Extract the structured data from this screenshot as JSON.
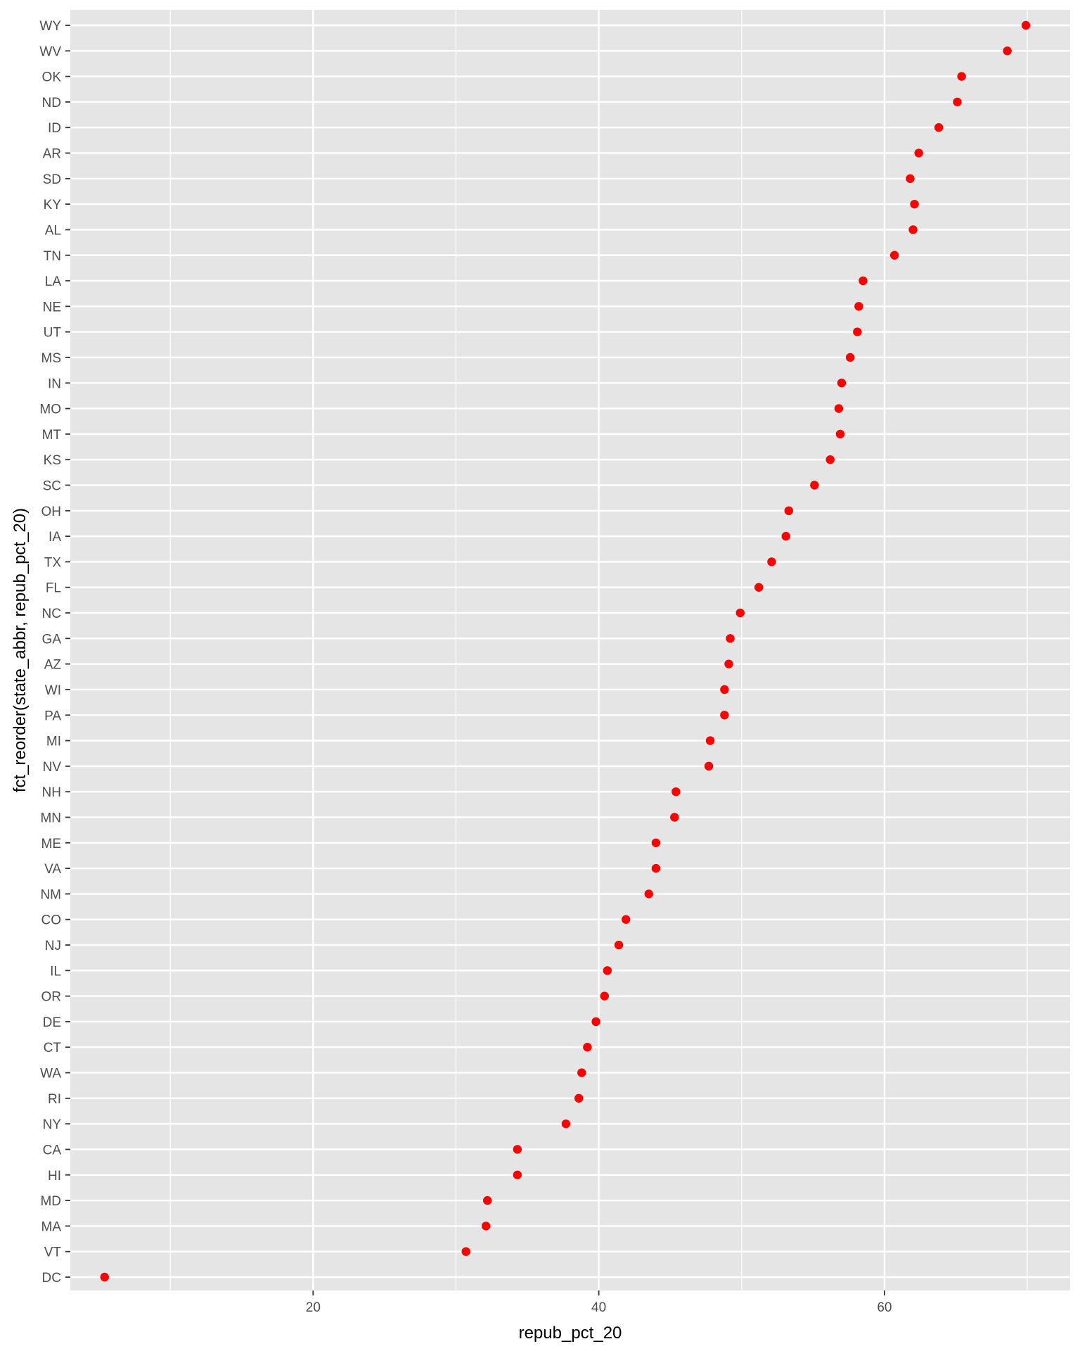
{
  "chart_data": {
    "type": "scatter",
    "title": "",
    "xlabel": "repub_pct_20",
    "ylabel": "fct_reorder(state_abbr, repub_pct_20)",
    "xlim": [
      3.0,
      73.0
    ],
    "x_major_ticks": [
      20,
      40,
      60
    ],
    "x_minor_ticks": [
      10,
      30,
      50,
      70
    ],
    "grid": true,
    "legend": "none",
    "point_color": "#ff0000",
    "panel_background": "#e5e5e5",
    "grid_color": "#ffffff",
    "categories": [
      "DC",
      "VT",
      "MA",
      "MD",
      "HI",
      "CA",
      "NY",
      "RI",
      "WA",
      "CT",
      "DE",
      "OR",
      "IL",
      "NJ",
      "CO",
      "NM",
      "VA",
      "ME",
      "MN",
      "NH",
      "NV",
      "MI",
      "PA",
      "WI",
      "AZ",
      "GA",
      "NC",
      "FL",
      "TX",
      "IA",
      "OH",
      "SC",
      "KS",
      "MT",
      "MO",
      "IN",
      "MS",
      "UT",
      "NE",
      "LA",
      "TN",
      "AL",
      "KY",
      "SD",
      "AR",
      "ID",
      "ND",
      "OK",
      "WV",
      "WY"
    ],
    "values": [
      5.4,
      30.7,
      32.1,
      32.2,
      34.3,
      34.3,
      37.7,
      38.6,
      38.8,
      39.2,
      39.8,
      40.4,
      40.6,
      41.4,
      41.9,
      43.5,
      44.0,
      44.0,
      45.3,
      45.4,
      47.7,
      47.8,
      48.8,
      48.8,
      49.1,
      49.2,
      49.9,
      51.2,
      52.1,
      53.1,
      53.3,
      55.1,
      56.2,
      56.9,
      56.8,
      57.0,
      57.6,
      58.1,
      58.2,
      58.5,
      60.7,
      62.0,
      62.1,
      61.8,
      62.4,
      63.8,
      65.1,
      65.4,
      68.6,
      69.9
    ]
  }
}
